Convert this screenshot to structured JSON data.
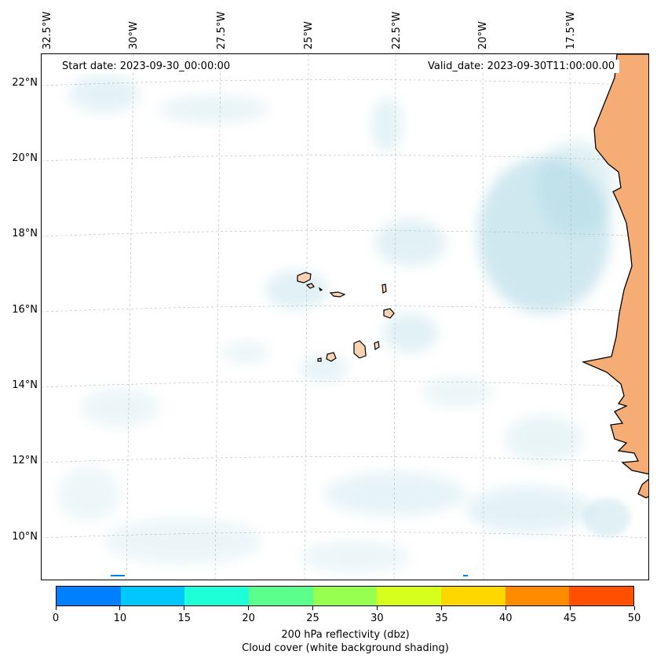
{
  "map": {
    "title_left": "Start date: 2023-09-30_00:00:00",
    "title_right": "Valid_date: 2023-09-30T11:00:00.00",
    "lon_labels": [
      "32.5°W",
      "30°W",
      "27.5°W",
      "25°W",
      "22.5°W",
      "20°W",
      "17.5°W"
    ],
    "lat_labels": [
      "22°N",
      "20°N",
      "18°N",
      "16°N",
      "14°N",
      "12°N",
      "10°N"
    ],
    "land_color": "#f5ad75",
    "island_color": "#f9d3b3",
    "cloud_color": "#a9d6e3",
    "coastline_color": "#000000",
    "features": [
      "Cape Verde islands",
      "West African coast (Mauritania, Senegal, Guinea-Bissau)"
    ]
  },
  "colorbar": {
    "ticks": [
      "0",
      "10",
      "15",
      "20",
      "25",
      "30",
      "35",
      "40",
      "45",
      "50"
    ],
    "colors": [
      "#0080ff",
      "#00c8ff",
      "#1effd7",
      "#5aff8c",
      "#96ff50",
      "#d7ff1e",
      "#ffd700",
      "#ff8c00",
      "#ff5000"
    ],
    "label_line1": "200 hPa reflectivity (dbz)",
    "label_line2": "Cloud cover (white background shading)"
  }
}
